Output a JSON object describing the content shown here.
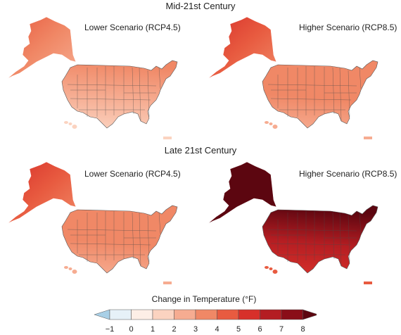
{
  "sections": [
    {
      "title": "Mid-21st Century",
      "panels": [
        {
          "label": "Lower Scenario (RCP4.5)",
          "conus_level": 3,
          "alaska_level": 4,
          "hawaii_level": 2,
          "gradient": [
            2,
            3,
            4
          ],
          "alaska_gradient": [
            3,
            4,
            5
          ]
        },
        {
          "label": "Higher Scenario (RCP8.5)",
          "conus_level": 4,
          "alaska_level": 5,
          "hawaii_level": 3,
          "gradient": [
            3,
            4,
            4
          ],
          "alaska_gradient": [
            4,
            5,
            6
          ]
        }
      ]
    },
    {
      "title": "Late 21st Century",
      "panels": [
        {
          "label": "Lower Scenario (RCP4.5)",
          "conus_level": 4,
          "alaska_level": 5,
          "hawaii_level": 3,
          "gradient": [
            3,
            4,
            4
          ],
          "alaska_gradient": [
            4,
            5,
            6
          ]
        },
        {
          "label": "Higher Scenario (RCP8.5)",
          "conus_level": 8,
          "alaska_level": 8,
          "hawaii_level": 5,
          "gradient": [
            6,
            7,
            8
          ],
          "alaska_gradient": [
            8,
            8,
            8
          ]
        }
      ]
    }
  ],
  "legend": {
    "title": "Change in Temperature (°F)",
    "ticks": [
      "−1",
      "0",
      "1",
      "2",
      "3",
      "4",
      "5",
      "6",
      "7",
      "8"
    ],
    "colors": {
      "below": "#a8cfe6",
      "bins": [
        "#e6f1f8",
        "#fdeee6",
        "#fbd3c0",
        "#f6ac91",
        "#f08866",
        "#e85b40",
        "#d7302a",
        "#b41d22",
        "#8a0e18"
      ],
      "above": "#5c0610"
    }
  }
}
